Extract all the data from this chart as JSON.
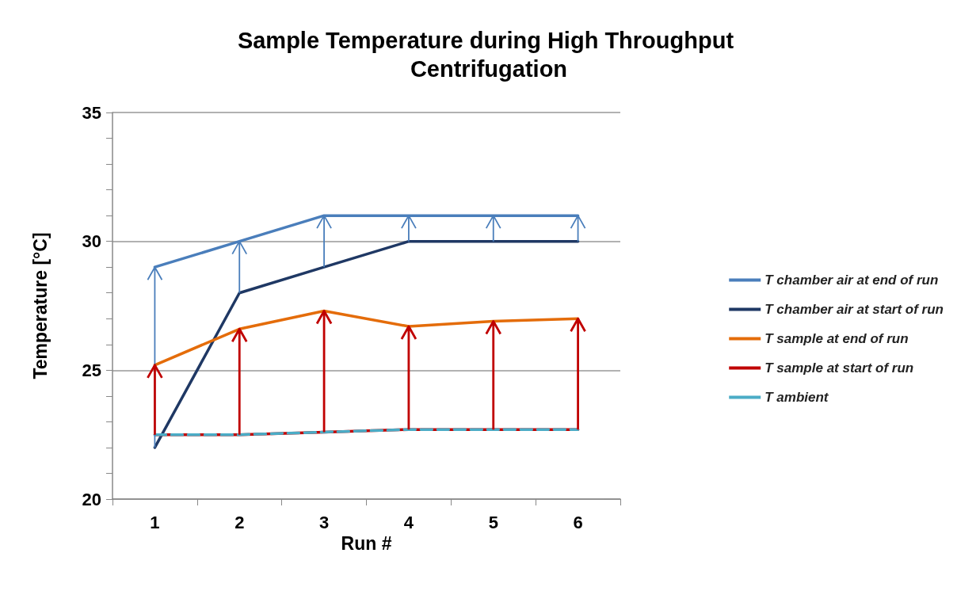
{
  "chart_data": {
    "type": "line",
    "title": "Sample Temperature during High Throughput Centrifugation",
    "xlabel": "Run #",
    "ylabel": "Temperature [°C]",
    "categories": [
      "1",
      "2",
      "3",
      "4",
      "5",
      "6"
    ],
    "series": [
      {
        "name": "T chamber air at end of run",
        "color": "#4a7ebb",
        "values": [
          29,
          30,
          31,
          31,
          31,
          31
        ]
      },
      {
        "name": "T chamber air at start of run",
        "color": "#1f3864",
        "values": [
          22,
          28,
          29,
          30,
          30,
          30
        ]
      },
      {
        "name": "T sample at end of run",
        "color": "#e46c0a",
        "values": [
          25.2,
          26.6,
          27.3,
          26.7,
          26.9,
          27.0
        ]
      },
      {
        "name": "T sample at start of run",
        "color": "#c00000",
        "values": [
          22.5,
          22.5,
          22.6,
          22.7,
          22.7,
          22.7
        ]
      },
      {
        "name": "T ambient",
        "color": "#4bacc6",
        "values": [
          22.5,
          22.5,
          22.6,
          22.7,
          22.7,
          22.7
        ],
        "line_style": "dashed"
      }
    ],
    "ylim": [
      20,
      35
    ],
    "yticks": [
      20,
      {
        "value": 21,
        "label": null
      },
      {
        "value": 22,
        "label": null
      },
      {
        "value": 23,
        "label": null
      },
      {
        "value": 24,
        "label": null
      },
      25,
      {
        "value": 26,
        "label": null
      },
      {
        "value": 27,
        "label": null
      },
      {
        "value": 28,
        "label": null
      },
      {
        "value": 29,
        "label": null
      },
      30,
      {
        "value": 31,
        "label": null
      },
      {
        "value": 32,
        "label": null
      },
      {
        "value": 33,
        "label": null
      },
      {
        "value": 34,
        "label": null
      },
      35
    ],
    "grid": "y",
    "legend": "right",
    "marker": "none",
    "line_style": "solid"
  }
}
